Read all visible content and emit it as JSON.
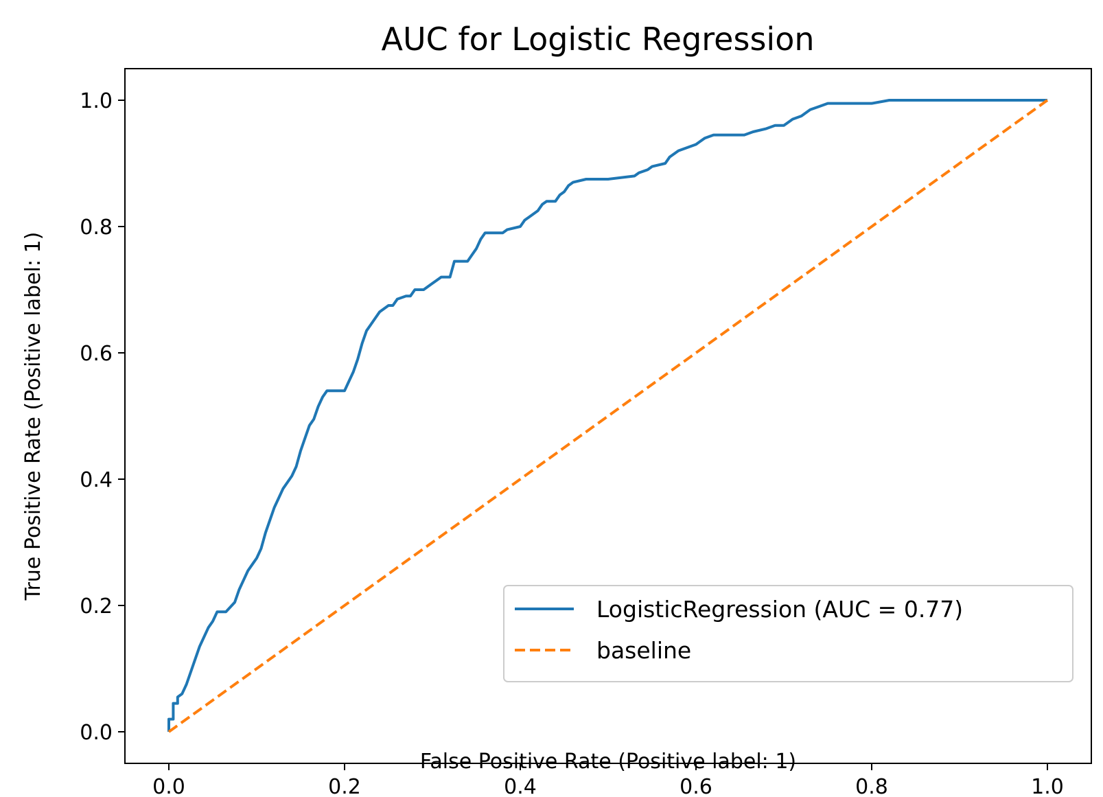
{
  "chart_data": {
    "type": "line",
    "title": "AUC for Logistic Regression",
    "xlabel": "False Positive Rate (Positive label: 1)",
    "ylabel": "True Positive Rate (Positive label: 1)",
    "xlim": [
      -0.05,
      1.05
    ],
    "ylim": [
      -0.05,
      1.05
    ],
    "xticks": [
      0.0,
      0.2,
      0.4,
      0.6,
      0.8,
      1.0
    ],
    "xtick_labels": [
      "0.0",
      "0.2",
      "0.4",
      "0.6",
      "0.8",
      "1.0"
    ],
    "yticks": [
      0.0,
      0.2,
      0.4,
      0.6,
      0.8,
      1.0
    ],
    "ytick_labels": [
      "0.0",
      "0.2",
      "0.4",
      "0.6",
      "0.8",
      "1.0"
    ],
    "grid": false,
    "legend_position": "lower-right",
    "series": [
      {
        "name": "LogisticRegression (AUC = 0.77)",
        "color": "#1f77b4",
        "style": "solid",
        "x": [
          0.0,
          0.0,
          0.005,
          0.005,
          0.01,
          0.01,
          0.015,
          0.02,
          0.025,
          0.03,
          0.035,
          0.04,
          0.045,
          0.05,
          0.055,
          0.06,
          0.065,
          0.075,
          0.08,
          0.085,
          0.09,
          0.095,
          0.1,
          0.105,
          0.11,
          0.115,
          0.12,
          0.125,
          0.13,
          0.135,
          0.14,
          0.145,
          0.15,
          0.155,
          0.16,
          0.165,
          0.17,
          0.175,
          0.18,
          0.185,
          0.2,
          0.205,
          0.21,
          0.215,
          0.22,
          0.225,
          0.23,
          0.235,
          0.24,
          0.245,
          0.25,
          0.255,
          0.26,
          0.27,
          0.275,
          0.28,
          0.29,
          0.3,
          0.305,
          0.31,
          0.32,
          0.325,
          0.34,
          0.345,
          0.35,
          0.355,
          0.36,
          0.38,
          0.385,
          0.4,
          0.405,
          0.41,
          0.42,
          0.425,
          0.43,
          0.44,
          0.445,
          0.45,
          0.455,
          0.46,
          0.475,
          0.5,
          0.53,
          0.535,
          0.545,
          0.55,
          0.565,
          0.57,
          0.58,
          0.6,
          0.605,
          0.61,
          0.62,
          0.635,
          0.655,
          0.665,
          0.68,
          0.69,
          0.7,
          0.71,
          0.72,
          0.73,
          0.74,
          0.75,
          0.8,
          0.82,
          0.85,
          0.9,
          1.0
        ],
        "y": [
          0.0,
          0.02,
          0.02,
          0.045,
          0.045,
          0.055,
          0.06,
          0.075,
          0.095,
          0.115,
          0.135,
          0.15,
          0.165,
          0.175,
          0.19,
          0.19,
          0.19,
          0.205,
          0.225,
          0.24,
          0.255,
          0.265,
          0.275,
          0.29,
          0.315,
          0.335,
          0.355,
          0.37,
          0.385,
          0.395,
          0.405,
          0.42,
          0.445,
          0.465,
          0.485,
          0.495,
          0.515,
          0.53,
          0.54,
          0.54,
          0.54,
          0.555,
          0.57,
          0.59,
          0.615,
          0.635,
          0.645,
          0.655,
          0.665,
          0.67,
          0.675,
          0.675,
          0.685,
          0.69,
          0.69,
          0.7,
          0.7,
          0.71,
          0.715,
          0.72,
          0.72,
          0.745,
          0.745,
          0.755,
          0.765,
          0.78,
          0.79,
          0.79,
          0.795,
          0.8,
          0.81,
          0.815,
          0.825,
          0.835,
          0.84,
          0.84,
          0.85,
          0.855,
          0.865,
          0.87,
          0.875,
          0.875,
          0.88,
          0.885,
          0.89,
          0.895,
          0.9,
          0.91,
          0.92,
          0.93,
          0.935,
          0.94,
          0.945,
          0.945,
          0.945,
          0.95,
          0.955,
          0.96,
          0.96,
          0.97,
          0.975,
          0.985,
          0.99,
          0.995,
          0.995,
          1.0,
          1.0,
          1.0,
          1.0
        ]
      },
      {
        "name": "baseline",
        "color": "#ff7f0e",
        "style": "dashed",
        "x": [
          0.0,
          1.0
        ],
        "y": [
          0.0,
          1.0
        ]
      }
    ]
  }
}
